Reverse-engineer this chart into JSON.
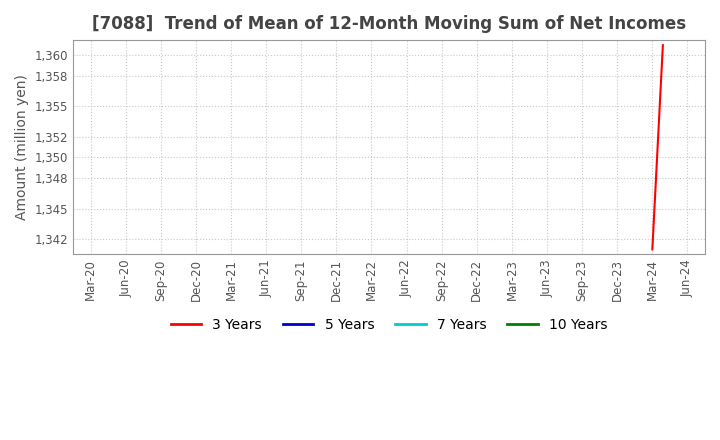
{
  "title": "[7088]  Trend of Mean of 12-Month Moving Sum of Net Incomes",
  "ylabel": "Amount (million yen)",
  "background_color": "#ffffff",
  "plot_bg_color": "#ffffff",
  "grid_color": "#c8c8c8",
  "x_tick_labels": [
    "Mar-20",
    "Jun-20",
    "Sep-20",
    "Dec-20",
    "Mar-21",
    "Jun-21",
    "Sep-21",
    "Dec-21",
    "Mar-22",
    "Jun-22",
    "Sep-22",
    "Dec-22",
    "Mar-23",
    "Jun-23",
    "Sep-23",
    "Dec-23",
    "Mar-24",
    "Jun-24"
  ],
  "yticks": [
    1342,
    1345,
    1348,
    1350,
    1352,
    1355,
    1358,
    1360
  ],
  "ylim": [
    1340.5,
    1361.5
  ],
  "series_3y": {
    "color": "#ff0000",
    "x": [
      16.0,
      16.3
    ],
    "y": [
      1341.0,
      1361.0
    ]
  },
  "legend_items": [
    {
      "label": "3 Years",
      "color": "#ff0000"
    },
    {
      "label": "5 Years",
      "color": "#0000cc"
    },
    {
      "label": "7 Years",
      "color": "#00cccc"
    },
    {
      "label": "10 Years",
      "color": "#008000"
    }
  ],
  "title_fontsize": 12,
  "axis_label_fontsize": 10,
  "tick_fontsize": 8.5,
  "legend_fontsize": 10
}
